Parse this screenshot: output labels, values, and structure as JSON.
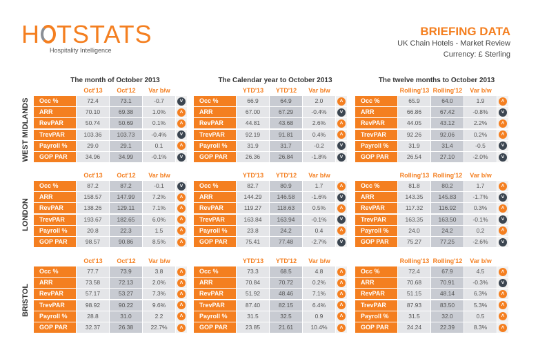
{
  "header": {
    "logo_text": "HOTSTATS",
    "tagline": "Hospitality Intelligence",
    "title": "BRIEFING DATA",
    "subtitle": "UK Chain Hotels - Market Review",
    "currency": "Currency: £ Sterling"
  },
  "colors": {
    "accent": "#f47f20",
    "down_icon": "#3b4550"
  },
  "periods": [
    {
      "title": "The month of October 2013",
      "columns": [
        "Oct'13",
        "Oct'12",
        "Var b/w"
      ]
    },
    {
      "title": "The Calendar year to October 2013",
      "columns": [
        "YTD'13",
        "YTD'12",
        "Var b/w"
      ]
    },
    {
      "title": "The twelve months to October 2013",
      "columns": [
        "Rolling'13",
        "Rolling'12",
        "Var b/w"
      ]
    }
  ],
  "metrics": [
    "Occ %",
    "ARR",
    "RevPAR",
    "TrevPAR",
    "Payroll %",
    "GOP PAR"
  ],
  "regions": [
    {
      "name": "WEST MIDLANDS",
      "tables": [
        [
          [
            "72.4",
            "73.1",
            "-0.7",
            "down"
          ],
          [
            "70.10",
            "69.38",
            "1.0%",
            "up"
          ],
          [
            "50.74",
            "50.69",
            "0.1%",
            "up"
          ],
          [
            "103.36",
            "103.73",
            "-0.4%",
            "down"
          ],
          [
            "29.0",
            "29.1",
            "0.1",
            "up"
          ],
          [
            "34.96",
            "34.99",
            "-0.1%",
            "down"
          ]
        ],
        [
          [
            "66.9",
            "64.9",
            "2.0",
            "up"
          ],
          [
            "67.00",
            "67.29",
            "-0.4%",
            "down"
          ],
          [
            "44.81",
            "43.68",
            "2.6%",
            "up"
          ],
          [
            "92.19",
            "91.81",
            "0.4%",
            "up"
          ],
          [
            "31.9",
            "31.7",
            "-0.2",
            "down"
          ],
          [
            "26.36",
            "26.84",
            "-1.8%",
            "down"
          ]
        ],
        [
          [
            "65.9",
            "64.0",
            "1.9",
            "up"
          ],
          [
            "66.86",
            "67.42",
            "-0.8%",
            "down"
          ],
          [
            "44.05",
            "43.12",
            "2.2%",
            "up"
          ],
          [
            "92.26",
            "92.06",
            "0.2%",
            "up"
          ],
          [
            "31.9",
            "31.4",
            "-0.5",
            "down"
          ],
          [
            "26.54",
            "27.10",
            "-2.0%",
            "down"
          ]
        ]
      ]
    },
    {
      "name": "LONDON",
      "tables": [
        [
          [
            "87.2",
            "87.2",
            "-0.1",
            "down"
          ],
          [
            "158.57",
            "147.99",
            "7.2%",
            "up"
          ],
          [
            "138.26",
            "129.11",
            "7.1%",
            "up"
          ],
          [
            "193.67",
            "182.65",
            "6.0%",
            "up"
          ],
          [
            "20.8",
            "22.3",
            "1.5",
            "up"
          ],
          [
            "98.57",
            "90.86",
            "8.5%",
            "up"
          ]
        ],
        [
          [
            "82.7",
            "80.9",
            "1.7",
            "up"
          ],
          [
            "144.29",
            "146.58",
            "-1.6%",
            "down"
          ],
          [
            "119.27",
            "118.63",
            "0.5%",
            "up"
          ],
          [
            "163.84",
            "163.94",
            "-0.1%",
            "down"
          ],
          [
            "23.8",
            "24.2",
            "0.4",
            "up"
          ],
          [
            "75.41",
            "77.48",
            "-2.7%",
            "down"
          ]
        ],
        [
          [
            "81.8",
            "80.2",
            "1.7",
            "up"
          ],
          [
            "143.35",
            "145.83",
            "-1.7%",
            "down"
          ],
          [
            "117.32",
            "116.92",
            "0.3%",
            "up"
          ],
          [
            "163.35",
            "163.50",
            "-0.1%",
            "down"
          ],
          [
            "24.0",
            "24.2",
            "0.2",
            "up"
          ],
          [
            "75.27",
            "77.25",
            "-2.6%",
            "down"
          ]
        ]
      ]
    },
    {
      "name": "BRISTOL",
      "tables": [
        [
          [
            "77.7",
            "73.9",
            "3.8",
            "up"
          ],
          [
            "73.58",
            "72.13",
            "2.0%",
            "up"
          ],
          [
            "57.17",
            "53.27",
            "7.3%",
            "up"
          ],
          [
            "98.92",
            "90.22",
            "9.6%",
            "up"
          ],
          [
            "28.8",
            "31.0",
            "2.2",
            "up"
          ],
          [
            "32.37",
            "26.38",
            "22.7%",
            "up"
          ]
        ],
        [
          [
            "73.3",
            "68.5",
            "4.8",
            "up"
          ],
          [
            "70.84",
            "70.72",
            "0.2%",
            "up"
          ],
          [
            "51.92",
            "48.46",
            "7.1%",
            "up"
          ],
          [
            "87.40",
            "82.15",
            "6.4%",
            "up"
          ],
          [
            "31.5",
            "32.5",
            "0.9",
            "up"
          ],
          [
            "23.85",
            "21.61",
            "10.4%",
            "up"
          ]
        ],
        [
          [
            "72.4",
            "67.9",
            "4.5",
            "up"
          ],
          [
            "70.68",
            "70.91",
            "-0.3%",
            "down"
          ],
          [
            "51.15",
            "48.14",
            "6.3%",
            "up"
          ],
          [
            "87.93",
            "83.50",
            "5.3%",
            "up"
          ],
          [
            "31.5",
            "32.0",
            "0.5",
            "up"
          ],
          [
            "24.24",
            "22.39",
            "8.3%",
            "up"
          ]
        ]
      ]
    }
  ]
}
